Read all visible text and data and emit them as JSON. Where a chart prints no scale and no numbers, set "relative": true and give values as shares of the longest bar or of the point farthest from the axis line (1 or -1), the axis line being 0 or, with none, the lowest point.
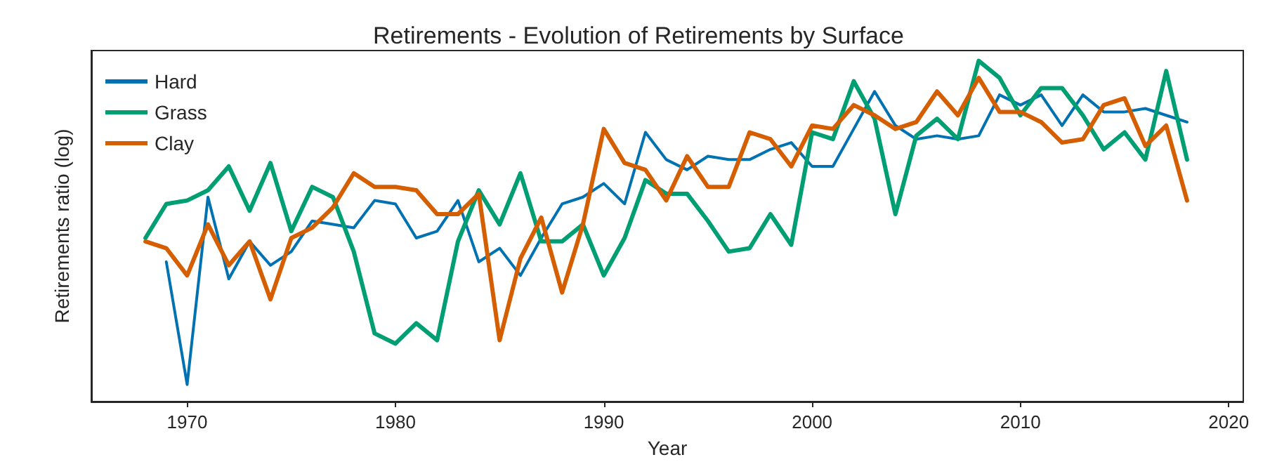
{
  "chart_data": {
    "type": "line",
    "title": "Retirements - Evolution of Retirements by Surface",
    "xlabel": "Year",
    "ylabel": "Retirements ratio (log)",
    "relative": true,
    "x": [
      1968,
      1969,
      1970,
      1971,
      1972,
      1973,
      1974,
      1975,
      1976,
      1977,
      1978,
      1979,
      1980,
      1981,
      1982,
      1983,
      1984,
      1985,
      1986,
      1987,
      1988,
      1989,
      1990,
      1991,
      1992,
      1993,
      1994,
      1995,
      1996,
      1997,
      1998,
      1999,
      2000,
      2001,
      2002,
      2003,
      2004,
      2005,
      2006,
      2007,
      2008,
      2009,
      2010,
      2011,
      2012,
      2013,
      2014,
      2015,
      2016,
      2017,
      2018
    ],
    "xlim": [
      1965.4,
      2020.7
    ],
    "xticks": [
      1970,
      1980,
      1990,
      2000,
      2010,
      2020
    ],
    "series": [
      {
        "name": "Hard",
        "color": "#0072b2",
        "values": [
          null,
          0.41,
          0.05,
          0.6,
          0.36,
          0.47,
          0.4,
          0.44,
          0.53,
          0.52,
          0.51,
          0.59,
          0.58,
          0.48,
          0.5,
          0.59,
          0.41,
          0.45,
          0.37,
          0.48,
          0.58,
          0.6,
          0.64,
          0.58,
          0.79,
          0.71,
          0.68,
          0.72,
          0.71,
          0.71,
          0.74,
          0.76,
          0.69,
          0.69,
          0.8,
          0.91,
          0.81,
          0.77,
          0.78,
          0.77,
          0.78,
          0.9,
          0.87,
          0.9,
          0.81,
          0.9,
          0.85,
          0.85,
          0.86,
          0.84,
          0.82
        ]
      },
      {
        "name": "Grass",
        "color": "#009e73",
        "values": [
          0.48,
          0.58,
          0.59,
          0.62,
          0.69,
          0.56,
          0.7,
          0.5,
          0.63,
          0.6,
          0.44,
          0.2,
          0.17,
          0.23,
          0.18,
          0.47,
          0.62,
          0.52,
          0.67,
          0.47,
          0.47,
          0.52,
          0.37,
          0.48,
          0.65,
          0.61,
          0.61,
          0.53,
          0.44,
          0.45,
          0.55,
          0.46,
          0.79,
          0.77,
          0.94,
          0.83,
          0.55,
          0.78,
          0.83,
          0.77,
          1.0,
          0.95,
          0.84,
          0.92,
          0.92,
          0.84,
          0.74,
          0.79,
          0.71,
          0.97,
          0.71
        ]
      },
      {
        "name": "Clay",
        "color": "#d55e00",
        "values": [
          0.47,
          0.45,
          0.37,
          0.52,
          0.4,
          0.47,
          0.3,
          0.48,
          0.51,
          0.57,
          0.67,
          0.63,
          0.63,
          0.62,
          0.55,
          0.55,
          0.61,
          0.18,
          0.42,
          0.54,
          0.32,
          0.52,
          0.8,
          0.7,
          0.68,
          0.59,
          0.72,
          0.63,
          0.63,
          0.79,
          0.77,
          0.69,
          0.81,
          0.8,
          0.87,
          0.84,
          0.8,
          0.82,
          0.91,
          0.84,
          0.95,
          0.85,
          0.85,
          0.82,
          0.76,
          0.77,
          0.87,
          0.89,
          0.75,
          0.81,
          0.59
        ]
      }
    ],
    "legend": "top left",
    "grid": false
  }
}
